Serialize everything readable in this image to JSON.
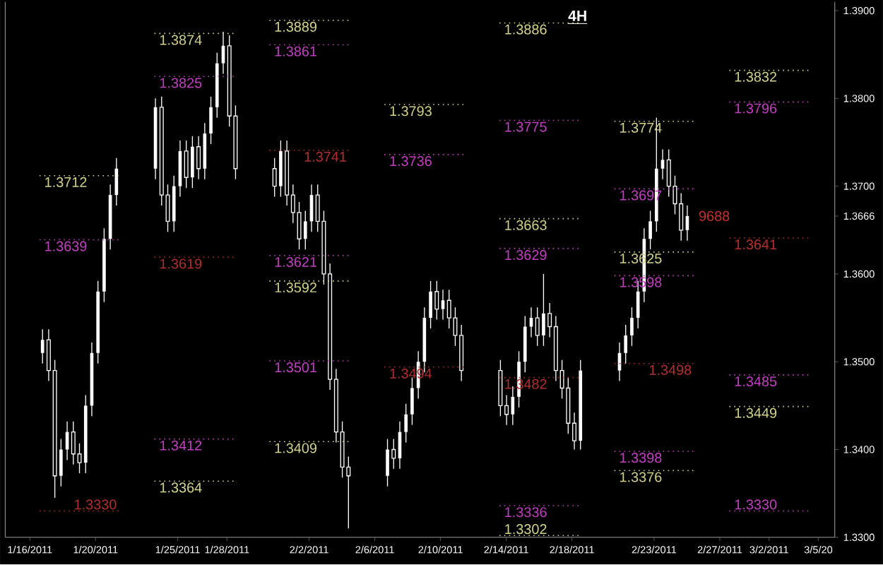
{
  "chart_data": {
    "type": "candlestick",
    "title": "4H",
    "color": "#ffffff",
    "x": [
      "2011-01-16T18:30",
      "2011-01-17T03:30",
      "2011-01-17T12:30",
      "2011-01-17T21:30",
      "2011-01-18T06:30",
      "2011-01-18T15:30",
      "2011-01-19T00:30",
      "2011-01-19T09:30",
      "2011-01-19T18:30",
      "2011-01-20T03:30",
      "2011-01-20T12:30",
      "2011-01-20T21:30",
      "2011-01-21T06:30",
      "2011-01-23T15:30",
      "2011-01-24T00:30",
      "2011-01-24T09:30",
      "2011-01-24T18:30",
      "2011-01-25T03:30",
      "2011-01-25T12:30",
      "2011-01-25T21:30",
      "2011-01-26T06:30",
      "2011-01-26T15:30",
      "2011-01-27T00:30",
      "2011-01-27T09:30",
      "2011-01-27T18:30",
      "2011-01-28T03:30",
      "2011-01-28T12:30",
      "2011-01-30T21:30",
      "2011-01-31T06:30",
      "2011-01-31T15:30",
      "2011-02-01T00:30",
      "2011-02-01T09:30",
      "2011-02-01T18:30",
      "2011-02-02T03:30",
      "2011-02-02T12:30",
      "2011-02-02T21:30",
      "2011-02-03T06:30",
      "2011-02-03T15:30",
      "2011-02-04T00:30",
      "2011-02-04T09:30",
      "2011-02-06T18:30",
      "2011-02-07T03:30",
      "2011-02-07T12:30",
      "2011-02-07T21:30",
      "2011-02-08T06:30",
      "2011-02-08T15:30",
      "2011-02-09T00:30",
      "2011-02-09T09:30",
      "2011-02-09T18:30",
      "2011-02-10T03:30",
      "2011-02-10T12:30",
      "2011-02-10T21:30",
      "2011-02-11T06:30",
      "2011-02-13T15:30",
      "2011-02-14T00:30",
      "2011-02-14T09:30",
      "2011-02-14T18:30",
      "2011-02-15T03:30",
      "2011-02-15T12:30",
      "2011-02-15T21:30",
      "2011-02-16T06:30",
      "2011-02-16T15:30",
      "2011-02-17T00:30",
      "2011-02-17T09:30",
      "2011-02-17T18:30",
      "2011-02-18T03:30",
      "2011-02-18T12:30",
      "2011-02-20T21:30",
      "2011-02-21T06:30",
      "2011-02-21T15:30",
      "2011-02-22T00:30",
      "2011-02-22T09:30",
      "2011-02-22T18:30",
      "2011-02-23T03:30",
      "2011-02-23T12:30",
      "2011-02-23T21:30",
      "2011-02-24T06:30",
      "2011-02-24T15:30",
      "2011-02-25T00:30"
    ],
    "ohlc": [
      [
        1.351,
        1.3537,
        1.3498,
        1.3525
      ],
      [
        1.3525,
        1.3537,
        1.3478,
        1.349
      ],
      [
        1.349,
        1.3502,
        1.3345,
        1.337
      ],
      [
        1.337,
        1.3412,
        1.3358,
        1.34
      ],
      [
        1.34,
        1.3432,
        1.3388,
        1.342
      ],
      [
        1.342,
        1.3432,
        1.3383,
        1.3395
      ],
      [
        1.3395,
        1.3407,
        1.3373,
        1.3385
      ],
      [
        1.3385,
        1.3462,
        1.3373,
        1.345
      ],
      [
        1.345,
        1.3522,
        1.3438,
        1.351
      ],
      [
        1.351,
        1.3592,
        1.3498,
        1.358
      ],
      [
        1.358,
        1.3652,
        1.3568,
        1.364
      ],
      [
        1.364,
        1.3702,
        1.3628,
        1.369
      ],
      [
        1.369,
        1.3732,
        1.3678,
        1.372
      ],
      [
        1.372,
        1.38,
        1.3708,
        1.379
      ],
      [
        1.379,
        1.3802,
        1.3678,
        1.369
      ],
      [
        1.369,
        1.3702,
        1.3648,
        1.366
      ],
      [
        1.366,
        1.3712,
        1.3648,
        1.37
      ],
      [
        1.37,
        1.3752,
        1.3688,
        1.374
      ],
      [
        1.374,
        1.3752,
        1.3698,
        1.371
      ],
      [
        1.371,
        1.3757,
        1.3698,
        1.3745
      ],
      [
        1.3745,
        1.3757,
        1.3708,
        1.372
      ],
      [
        1.372,
        1.3772,
        1.3708,
        1.376
      ],
      [
        1.376,
        1.3802,
        1.3748,
        1.379
      ],
      [
        1.379,
        1.3852,
        1.3778,
        1.384
      ],
      [
        1.384,
        1.3876,
        1.3828,
        1.386
      ],
      [
        1.386,
        1.3872,
        1.3768,
        1.378
      ],
      [
        1.378,
        1.3792,
        1.3708,
        1.372
      ],
      [
        1.372,
        1.3732,
        1.3688,
        1.37
      ],
      [
        1.37,
        1.3752,
        1.3688,
        1.374
      ],
      [
        1.374,
        1.3752,
        1.3678,
        1.369
      ],
      [
        1.369,
        1.3702,
        1.3658,
        1.367
      ],
      [
        1.367,
        1.3682,
        1.3628,
        1.364
      ],
      [
        1.364,
        1.3672,
        1.3628,
        1.366
      ],
      [
        1.366,
        1.3702,
        1.3648,
        1.369
      ],
      [
        1.369,
        1.3702,
        1.3648,
        1.366
      ],
      [
        1.366,
        1.3672,
        1.3588,
        1.36
      ],
      [
        1.36,
        1.3612,
        1.3468,
        1.348
      ],
      [
        1.348,
        1.3492,
        1.3408,
        1.342
      ],
      [
        1.342,
        1.3432,
        1.3368,
        1.338
      ],
      [
        1.338,
        1.3392,
        1.331,
        1.337
      ],
      [
        1.337,
        1.3412,
        1.3358,
        1.34
      ],
      [
        1.34,
        1.3412,
        1.3378,
        1.339
      ],
      [
        1.339,
        1.3432,
        1.3378,
        1.342
      ],
      [
        1.342,
        1.3452,
        1.3408,
        1.344
      ],
      [
        1.344,
        1.3482,
        1.3428,
        1.347
      ],
      [
        1.347,
        1.3512,
        1.3458,
        1.35
      ],
      [
        1.35,
        1.3562,
        1.3488,
        1.355
      ],
      [
        1.355,
        1.3592,
        1.3538,
        1.358
      ],
      [
        1.358,
        1.3592,
        1.3548,
        1.356
      ],
      [
        1.356,
        1.3582,
        1.3548,
        1.357
      ],
      [
        1.357,
        1.3582,
        1.3538,
        1.355
      ],
      [
        1.355,
        1.3562,
        1.3518,
        1.353
      ],
      [
        1.353,
        1.3542,
        1.3478,
        1.349
      ],
      [
        1.349,
        1.3502,
        1.3438,
        1.345
      ],
      [
        1.345,
        1.3462,
        1.3428,
        1.344
      ],
      [
        1.344,
        1.3472,
        1.3428,
        1.346
      ],
      [
        1.346,
        1.3512,
        1.3448,
        1.35
      ],
      [
        1.35,
        1.3552,
        1.3488,
        1.354
      ],
      [
        1.354,
        1.3562,
        1.3528,
        1.355
      ],
      [
        1.355,
        1.3562,
        1.3518,
        1.353
      ],
      [
        1.353,
        1.36,
        1.3518,
        1.3555
      ],
      [
        1.3555,
        1.3567,
        1.3528,
        1.354
      ],
      [
        1.354,
        1.3552,
        1.3478,
        1.349
      ],
      [
        1.349,
        1.3502,
        1.3458,
        1.347
      ],
      [
        1.347,
        1.3482,
        1.3418,
        1.343
      ],
      [
        1.343,
        1.3442,
        1.34,
        1.341
      ],
      [
        1.341,
        1.3502,
        1.34,
        1.349
      ],
      [
        1.349,
        1.3522,
        1.3478,
        1.351
      ],
      [
        1.351,
        1.3542,
        1.3498,
        1.353
      ],
      [
        1.353,
        1.3562,
        1.3518,
        1.355
      ],
      [
        1.355,
        1.3592,
        1.3538,
        1.358
      ],
      [
        1.358,
        1.3652,
        1.3568,
        1.364
      ],
      [
        1.364,
        1.3672,
        1.3628,
        1.366
      ],
      [
        1.366,
        1.3778,
        1.3648,
        1.372
      ],
      [
        1.372,
        1.3742,
        1.3708,
        1.373
      ],
      [
        1.373,
        1.3742,
        1.3688,
        1.37
      ],
      [
        1.37,
        1.3712,
        1.3668,
        1.368
      ],
      [
        1.368,
        1.3692,
        1.3638,
        1.365
      ],
      [
        1.365,
        1.3678,
        1.3638,
        1.3666
      ]
    ],
    "xlim": [
      "2011-01-14T12:00",
      "2011-03-06"
    ],
    "xticks": [
      {
        "value": "2011-01-16",
        "label": "1/16/2011"
      },
      {
        "value": "2011-01-20",
        "label": "1/20/2011"
      },
      {
        "value": "2011-01-25",
        "label": "1/25/2011"
      },
      {
        "value": "2011-01-28",
        "label": "1/28/2011"
      },
      {
        "value": "2011-02-02",
        "label": "2/2/2011"
      },
      {
        "value": "2011-02-06",
        "label": "2/6/2011"
      },
      {
        "value": "2011-02-10",
        "label": "2/10/2011"
      },
      {
        "value": "2011-02-14",
        "label": "2/14/2011"
      },
      {
        "value": "2011-02-18",
        "label": "2/18/2011"
      },
      {
        "value": "2011-02-23",
        "label": "2/23/2011"
      },
      {
        "value": "2011-02-27",
        "label": "2/27/2011"
      },
      {
        "value": "2011-03-02",
        "label": "3/2/2011"
      },
      {
        "value": "2011-03-05",
        "label": "3/5/20"
      }
    ],
    "ylim": [
      1.33,
      1.391
    ],
    "yticks": [
      {
        "value": 1.33,
        "label": "1.3300"
      },
      {
        "value": 1.34,
        "label": "1.3400"
      },
      {
        "value": 1.35,
        "label": "1.3500"
      },
      {
        "value": 1.36,
        "label": "1.3600"
      },
      {
        "value": 1.3666,
        "label": "1.3666"
      },
      {
        "value": 1.37,
        "label": "1.3700"
      },
      {
        "value": 1.38,
        "label": "1.3800"
      },
      {
        "value": 1.39,
        "label": "1.3900"
      }
    ],
    "series": [
      {
        "type": "line",
        "name": "1.3712",
        "color": "#d4d48c",
        "line_style": "dotted",
        "x": [
          "2011-01-16T14:00",
          "2011-01-21T14:00"
        ],
        "values": [
          1.3712,
          1.3712
        ]
      },
      {
        "type": "line",
        "name": "1.3639",
        "color": "#c040c0",
        "line_style": "dotted",
        "x": [
          "2011-01-16T14:00",
          "2011-01-21T14:00"
        ],
        "values": [
          1.3639,
          1.3639
        ]
      },
      {
        "type": "line",
        "name": "1.3330",
        "color": "#b03030",
        "line_style": "dotted",
        "x": [
          "2011-01-16T14:00",
          "2011-01-21T14:00"
        ],
        "values": [
          1.333,
          1.333
        ]
      },
      {
        "type": "line",
        "name": "1.3874",
        "color": "#d4d48c",
        "line_style": "dotted",
        "x": [
          "2011-01-23T14:00",
          "2011-01-28T14:00"
        ],
        "values": [
          1.3874,
          1.3874
        ]
      },
      {
        "type": "line",
        "name": "1.3825",
        "color": "#c040c0",
        "line_style": "dotted",
        "x": [
          "2011-01-23T14:00",
          "2011-01-28T14:00"
        ],
        "values": [
          1.3825,
          1.3825
        ]
      },
      {
        "type": "line",
        "name": "1.3619",
        "color": "#b03030",
        "line_style": "dotted",
        "x": [
          "2011-01-23T14:00",
          "2011-01-28T14:00"
        ],
        "values": [
          1.3619,
          1.3619
        ]
      },
      {
        "type": "line",
        "name": "1.3412",
        "color": "#c040c0",
        "line_style": "dotted",
        "x": [
          "2011-01-23T14:00",
          "2011-01-28T14:00"
        ],
        "values": [
          1.3412,
          1.3412
        ]
      },
      {
        "type": "line",
        "name": "1.3364",
        "color": "#d4d48c",
        "line_style": "dotted",
        "x": [
          "2011-01-23T14:00",
          "2011-01-28T14:00"
        ],
        "values": [
          1.3364,
          1.3364
        ]
      },
      {
        "type": "line",
        "name": "1.3889",
        "color": "#d4d48c",
        "line_style": "dotted",
        "x": [
          "2011-01-30T14:00",
          "2011-02-04T14:00"
        ],
        "values": [
          1.3889,
          1.3889
        ]
      },
      {
        "type": "line",
        "name": "1.3861",
        "color": "#c040c0",
        "line_style": "dotted",
        "x": [
          "2011-01-30T14:00",
          "2011-02-04T14:00"
        ],
        "values": [
          1.3861,
          1.3861
        ]
      },
      {
        "type": "line",
        "name": "1.3741",
        "color": "#b03030",
        "line_style": "dotted",
        "x": [
          "2011-01-30T14:00",
          "2011-02-04T14:00"
        ],
        "values": [
          1.3741,
          1.3741
        ]
      },
      {
        "type": "line",
        "name": "1.3621",
        "color": "#c040c0",
        "line_style": "dotted",
        "x": [
          "2011-01-30T14:00",
          "2011-02-04T14:00"
        ],
        "values": [
          1.3621,
          1.3621
        ]
      },
      {
        "type": "line",
        "name": "1.3592",
        "color": "#d4d48c",
        "line_style": "dotted",
        "x": [
          "2011-01-30T14:00",
          "2011-02-04T14:00"
        ],
        "values": [
          1.3592,
          1.3592
        ]
      },
      {
        "type": "line",
        "name": "1.3501",
        "color": "#c040c0",
        "line_style": "dotted",
        "x": [
          "2011-01-30T14:00",
          "2011-02-04T14:00"
        ],
        "values": [
          1.3501,
          1.3501
        ]
      },
      {
        "type": "line",
        "name": "1.3409",
        "color": "#d4d48c",
        "line_style": "dotted",
        "x": [
          "2011-01-30T14:00",
          "2011-02-04T14:00"
        ],
        "values": [
          1.3409,
          1.3409
        ]
      },
      {
        "type": "line",
        "name": "1.3793",
        "color": "#d4d48c",
        "line_style": "dotted",
        "x": [
          "2011-02-06T14:00",
          "2011-02-11T14:00"
        ],
        "values": [
          1.3793,
          1.3793
        ]
      },
      {
        "type": "line",
        "name": "1.3736",
        "color": "#c040c0",
        "line_style": "dotted",
        "x": [
          "2011-02-06T14:00",
          "2011-02-11T14:00"
        ],
        "values": [
          1.3736,
          1.3736
        ]
      },
      {
        "type": "line",
        "name": "1.3494",
        "color": "#b03030",
        "line_style": "dotted",
        "x": [
          "2011-02-06T14:00",
          "2011-02-11T14:00"
        ],
        "values": [
          1.3494,
          1.3494
        ]
      },
      {
        "type": "line",
        "name": "1.3886",
        "color": "#d4d48c",
        "line_style": "dotted",
        "x": [
          "2011-02-13T14:00",
          "2011-02-18T14:00"
        ],
        "values": [
          1.3886,
          1.3886
        ]
      },
      {
        "type": "line",
        "name": "1.3775",
        "color": "#c040c0",
        "line_style": "dotted",
        "x": [
          "2011-02-13T14:00",
          "2011-02-18T14:00"
        ],
        "values": [
          1.3775,
          1.3775
        ]
      },
      {
        "type": "line",
        "name": "1.3663",
        "color": "#d4d48c",
        "line_style": "dotted",
        "x": [
          "2011-02-13T14:00",
          "2011-02-18T14:00"
        ],
        "values": [
          1.3663,
          1.3663
        ]
      },
      {
        "type": "line",
        "name": "1.3629",
        "color": "#c040c0",
        "line_style": "dotted",
        "x": [
          "2011-02-13T14:00",
          "2011-02-18T14:00"
        ],
        "values": [
          1.3629,
          1.3629
        ]
      },
      {
        "type": "line",
        "name": "1.3482",
        "color": "#b03030",
        "line_style": "dotted",
        "x": [
          "2011-02-13T14:00",
          "2011-02-18T14:00"
        ],
        "values": [
          1.3482,
          1.3482
        ]
      },
      {
        "type": "line",
        "name": "1.3336",
        "color": "#c040c0",
        "line_style": "dotted",
        "x": [
          "2011-02-13T14:00",
          "2011-02-18T14:00"
        ],
        "values": [
          1.3336,
          1.3336
        ]
      },
      {
        "type": "line",
        "name": "1.3302",
        "color": "#d4d48c",
        "line_style": "dotted",
        "x": [
          "2011-02-13T14:00",
          "2011-02-18T14:00"
        ],
        "values": [
          1.3302,
          1.3302
        ]
      },
      {
        "type": "line",
        "name": "1.3774",
        "color": "#d4d48c",
        "line_style": "dotted",
        "x": [
          "2011-02-20T14:00",
          "2011-02-25T14:00"
        ],
        "values": [
          1.3774,
          1.3774
        ]
      },
      {
        "type": "line",
        "name": "1.3697",
        "color": "#c040c0",
        "line_style": "dotted",
        "x": [
          "2011-02-20T14:00",
          "2011-02-25T14:00"
        ],
        "values": [
          1.3697,
          1.3697
        ]
      },
      {
        "type": "line",
        "name": "1.3625",
        "color": "#d4d48c",
        "line_style": "dotted",
        "x": [
          "2011-02-20T14:00",
          "2011-02-25T14:00"
        ],
        "values": [
          1.3625,
          1.3625
        ]
      },
      {
        "type": "line",
        "name": "1.3598",
        "color": "#c040c0",
        "line_style": "dotted",
        "x": [
          "2011-02-20T14:00",
          "2011-02-25T14:00"
        ],
        "values": [
          1.3598,
          1.3598
        ]
      },
      {
        "type": "line",
        "name": "1.3498",
        "color": "#b03030",
        "line_style": "dotted",
        "x": [
          "2011-02-20T14:00",
          "2011-02-25T14:00"
        ],
        "values": [
          1.3498,
          1.3498
        ]
      },
      {
        "type": "line",
        "name": "1.3398",
        "color": "#c040c0",
        "line_style": "dotted",
        "x": [
          "2011-02-20T14:00",
          "2011-02-25T14:00"
        ],
        "values": [
          1.3398,
          1.3398
        ]
      },
      {
        "type": "line",
        "name": "1.3376",
        "color": "#d4d48c",
        "line_style": "dotted",
        "x": [
          "2011-02-20T14:00",
          "2011-02-25T14:00"
        ],
        "values": [
          1.3376,
          1.3376
        ]
      },
      {
        "type": "line",
        "name": "1.3832",
        "color": "#d4d48c",
        "line_style": "dotted",
        "x": [
          "2011-02-27T14:00",
          "2011-03-04T14:00"
        ],
        "values": [
          1.3832,
          1.3832
        ]
      },
      {
        "type": "line",
        "name": "1.3796",
        "color": "#c040c0",
        "line_style": "dotted",
        "x": [
          "2011-02-27T14:00",
          "2011-03-04T14:00"
        ],
        "values": [
          1.3796,
          1.3796
        ]
      },
      {
        "type": "line",
        "name": "1.3641",
        "color": "#b03030",
        "line_style": "dotted",
        "x": [
          "2011-02-27T14:00",
          "2011-03-04T14:00"
        ],
        "values": [
          1.3641,
          1.3641
        ]
      },
      {
        "type": "line",
        "name": "1.3485",
        "color": "#c040c0",
        "line_style": "dotted",
        "x": [
          "2011-02-27T14:00",
          "2011-03-04T14:00"
        ],
        "values": [
          1.3485,
          1.3485
        ]
      },
      {
        "type": "line",
        "name": "1.3449",
        "color": "#d4d48c",
        "line_style": "dotted",
        "x": [
          "2011-02-27T14:00",
          "2011-03-04T14:00"
        ],
        "values": [
          1.3449,
          1.3449
        ]
      },
      {
        "type": "line",
        "name": "1.3330",
        "color": "#c040c0",
        "line_style": "dotted",
        "x": [
          "2011-02-27T14:00",
          "2011-03-04T14:00"
        ],
        "values": [
          1.333,
          1.333
        ]
      }
    ],
    "annotations": [
      {
        "text": "9688",
        "x": "2011-02-25T00:30",
        "y": 1.3666
      }
    ]
  }
}
